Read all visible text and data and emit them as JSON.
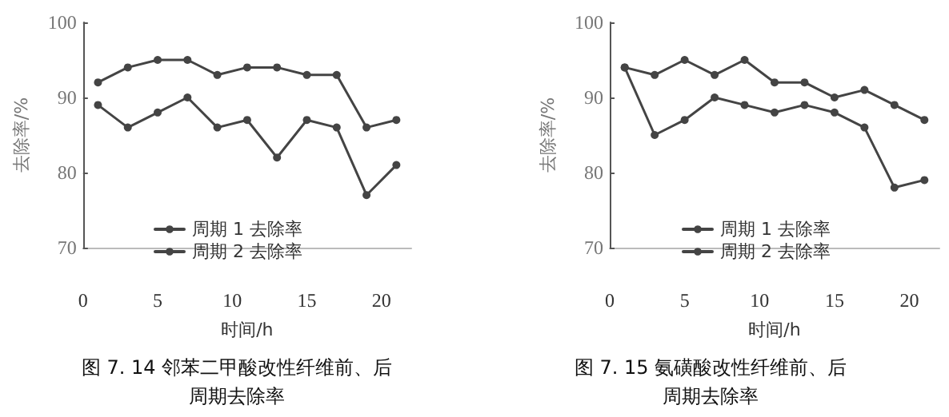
{
  "chart_data": [
    {
      "type": "line",
      "title": "图 7. 14 邻苯二甲酸改性纤维前、后周期去除率",
      "xlabel": "时间/h",
      "ylabel": "去除率/%",
      "x": [
        1,
        3,
        5,
        7,
        9,
        11,
        13,
        15,
        17,
        19,
        21
      ],
      "series": [
        {
          "name": "周期 1 去除率",
          "color": "#444444",
          "values": [
            92,
            94,
            95,
            95,
            93,
            94,
            94,
            93,
            93,
            86,
            87
          ]
        },
        {
          "name": "周期 2 去除率",
          "color": "#444444",
          "values": [
            89,
            86,
            88,
            90,
            86,
            87,
            82,
            87,
            86,
            77,
            81
          ]
        }
      ],
      "xlim": [
        0,
        22
      ],
      "xticks": [
        0,
        5,
        10,
        15,
        20
      ],
      "ylim": [
        70,
        100
      ],
      "yticks": [
        70,
        80,
        90,
        100
      ],
      "grid": false,
      "legend": "bottom",
      "marker": "circle",
      "line_style": "solid"
    },
    {
      "type": "line",
      "title": "图 7. 15 氨磺酸改性纤维前、后周期去除率",
      "xlabel": "时间/h",
      "ylabel": "去除率/%",
      "x": [
        1,
        3,
        5,
        7,
        9,
        11,
        13,
        15,
        17,
        19,
        21
      ],
      "series": [
        {
          "name": "周期 1 去除率",
          "color": "#444444",
          "values": [
            94,
            93,
            95,
            93,
            95,
            92,
            92,
            90,
            91,
            89,
            87
          ]
        },
        {
          "name": "周期 2 去除率",
          "color": "#444444",
          "values": [
            94,
            85,
            87,
            90,
            89,
            88,
            89,
            88,
            86,
            78,
            79
          ]
        }
      ],
      "xlim": [
        0,
        22
      ],
      "xticks": [
        0,
        5,
        10,
        15,
        20
      ],
      "ylim": [
        70,
        100
      ],
      "yticks": [
        70,
        80,
        90,
        100
      ],
      "grid": false,
      "legend": "bottom",
      "marker": "circle",
      "line_style": "solid"
    }
  ]
}
